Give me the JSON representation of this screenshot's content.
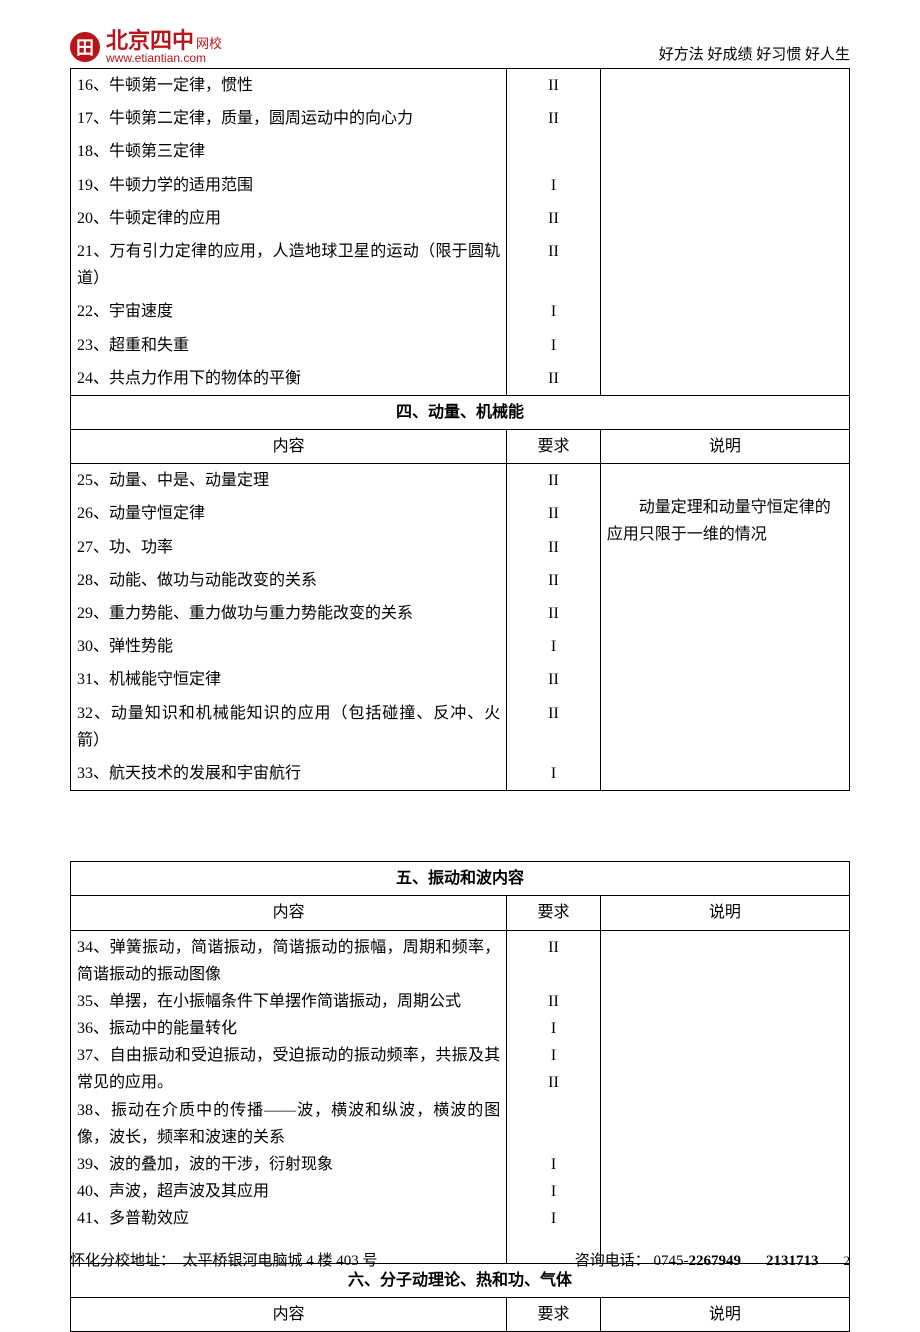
{
  "header": {
    "logo_cn": "北京四中",
    "logo_suffix": "网校",
    "logo_url": "www.etiantian.com",
    "slogan": "好方法 好成绩  好习惯 好人生"
  },
  "table1": {
    "rows": [
      {
        "t": "16、牛顿第一定律，惯性",
        "r": "II"
      },
      {
        "t": "17、牛顿第二定律，质量，圆周运动中的向心力",
        "r": "II"
      },
      {
        "t": "18、牛顿第三定律",
        "r": ""
      },
      {
        "t": "19、牛顿力学的适用范围",
        "r": "I"
      },
      {
        "t": "20、牛顿定律的应用",
        "r": "II"
      },
      {
        "t": "21、万有引力定律的应用，人造地球卫星的运动（限于圆轨道）",
        "r": "II"
      },
      {
        "t": "22、宇宙速度",
        "r": "I"
      },
      {
        "t": "23、超重和失重",
        "r": "I"
      },
      {
        "t": "24、共点力作用下的物体的平衡",
        "r": "II"
      }
    ]
  },
  "section4": {
    "title": "四、动量、机械能",
    "h1": "内容",
    "h2": "要求",
    "h3": "说明",
    "note": "　　动量定理和动量守恒定律的应用只限于一维的情况",
    "rows": [
      {
        "t": "25、动量、中是、动量定理",
        "r": "II"
      },
      {
        "t": "26、动量守恒定律",
        "r": "II"
      },
      {
        "t": "27、功、功率",
        "r": "II"
      },
      {
        "t": "28、动能、做功与动能改变的关系",
        "r": "II"
      },
      {
        "t": "29、重力势能、重力做功与重力势能改变的关系",
        "r": "II"
      },
      {
        "t": "30、弹性势能",
        "r": "I"
      },
      {
        "t": "31、机械能守恒定律",
        "r": "II"
      },
      {
        "t": "32、动量知识和机械能知识的应用（包括碰撞、反冲、火箭）",
        "r": "II"
      },
      {
        "t": "33、航天技术的发展和宇宙航行",
        "r": "I"
      }
    ]
  },
  "section5": {
    "title": "五、振动和波内容",
    "h1": "内容",
    "h2": "要求",
    "h3": "说明",
    "content_lines": [
      "34、弹簧振动，简谐振动，简谐振动的振幅，周期和频率，简谐振动的振动图像",
      "35、单摆，在小振幅条件下单摆作简谐振动，周期公式",
      "36、振动中的能量转化",
      "37、自由振动和受迫振动，受迫振动的振动频率，共振及其常见的应用。",
      "38、振动在介质中的传播——波，横波和纵波，横波的图像，波长，频率和波速的关系",
      "39、波的叠加，波的干涉，衍射现象",
      "40、声波，超声波及其应用",
      "41、多普勒效应"
    ],
    "req_lines": [
      "II",
      "",
      "II",
      "I",
      "I",
      "II",
      "",
      "",
      "I",
      "I",
      "I",
      ""
    ]
  },
  "section6": {
    "title": "六、分子动理论、热和功、气体",
    "h1": "内容",
    "h2": "要求",
    "h3": "说明"
  },
  "footer": {
    "address_label": "怀化分校地址：",
    "address": "太平桥银河电脑城 4 楼 403 号",
    "phone_label": "咨询电话：",
    "phone1": "0745-",
    "phone1b": "2267949",
    "phone2": "2131713",
    "pagenum": "2"
  }
}
